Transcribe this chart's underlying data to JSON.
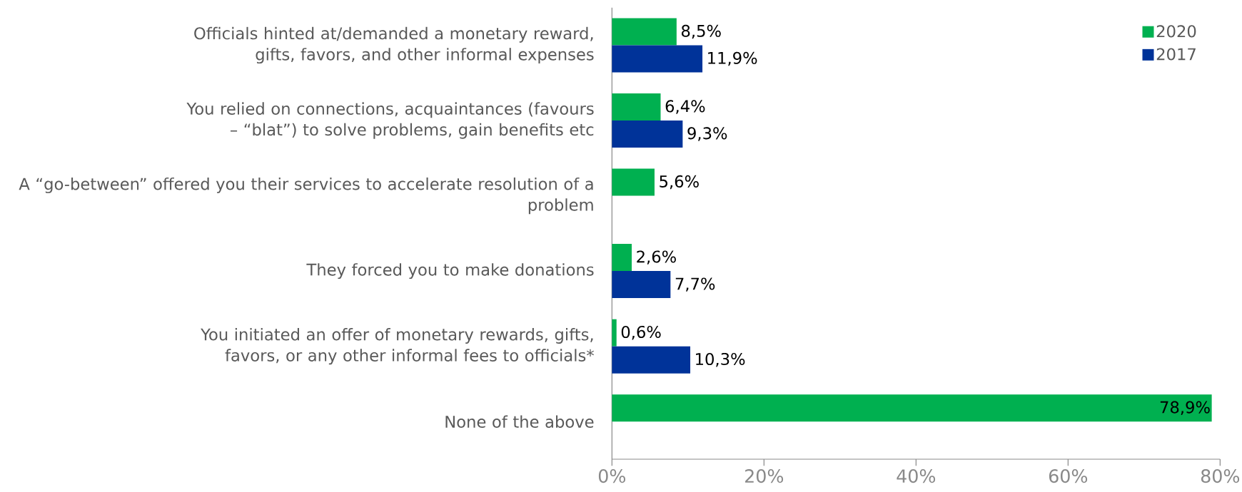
{
  "chart_data": {
    "type": "bar",
    "orientation": "horizontal",
    "categories": [
      "Officials hinted at/demanded a monetary reward, gifts, favors, and other informal expenses",
      "You relied on connections, acquaintances (favours – “blat”) to solve problems, gain benefits etc",
      "A “go-between” offered you their services to accelerate resolution of a problem",
      "They forced you to make donations",
      "You initiated an offer of monetary rewards, gifts, favors, or any other informal fees to officials*",
      "None of the above"
    ],
    "series": [
      {
        "name": "2020",
        "color": "#00b050",
        "values": [
          8.5,
          6.4,
          5.6,
          2.6,
          0.6,
          78.9
        ],
        "value_labels": [
          "8,5%",
          "6,4%",
          "5,6%",
          "2,6%",
          "0,6%",
          "78,9%"
        ]
      },
      {
        "name": "2017",
        "color": "#003399",
        "values": [
          11.9,
          9.3,
          null,
          7.7,
          10.3,
          null
        ],
        "value_labels": [
          "11,9%",
          "9,3%",
          null,
          "7,7%",
          "10,3%",
          null
        ]
      }
    ],
    "xlim": [
      0,
      80
    ],
    "xticks": [
      {
        "value": 0,
        "label": "0%"
      },
      {
        "value": 20,
        "label": "20%"
      },
      {
        "value": 40,
        "label": "40%"
      },
      {
        "value": 60,
        "label": "60%"
      },
      {
        "value": 80,
        "label": "80%"
      }
    ],
    "grid": false,
    "legend": "top right"
  }
}
